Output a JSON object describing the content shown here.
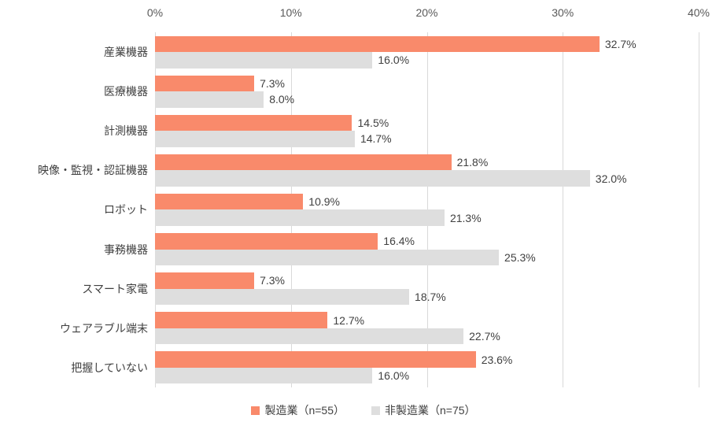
{
  "chart_data": {
    "type": "bar",
    "orientation": "horizontal",
    "categories": [
      "産業機器",
      "医療機器",
      "計測機器",
      "映像・監視・認証機器",
      "ロボット",
      "事務機器",
      "スマート家電",
      "ウェアラブル端末",
      "把握していない"
    ],
    "series": [
      {
        "name": "製造業（n=55）",
        "color": "#f98a6b",
        "values": [
          32.7,
          7.3,
          14.5,
          21.8,
          10.9,
          16.4,
          7.3,
          12.7,
          23.6
        ]
      },
      {
        "name": "非製造業（n=75）",
        "color": "#dedede",
        "values": [
          16.0,
          8.0,
          14.7,
          32.0,
          21.3,
          25.3,
          18.7,
          22.7,
          16.0
        ]
      }
    ],
    "x_ticks": [
      "0%",
      "10%",
      "20%",
      "30%",
      "40%"
    ],
    "x_tick_values": [
      0,
      10,
      20,
      30,
      40
    ],
    "xlim": [
      0,
      40
    ],
    "value_suffix": "%",
    "value_decimals": 1,
    "grid": true,
    "data_labels": true,
    "legend_position": "bottom"
  },
  "colors": {
    "grid": "#d9d9d9",
    "tick_text": "#595959",
    "label_text": "#404040",
    "background": "#ffffff"
  }
}
